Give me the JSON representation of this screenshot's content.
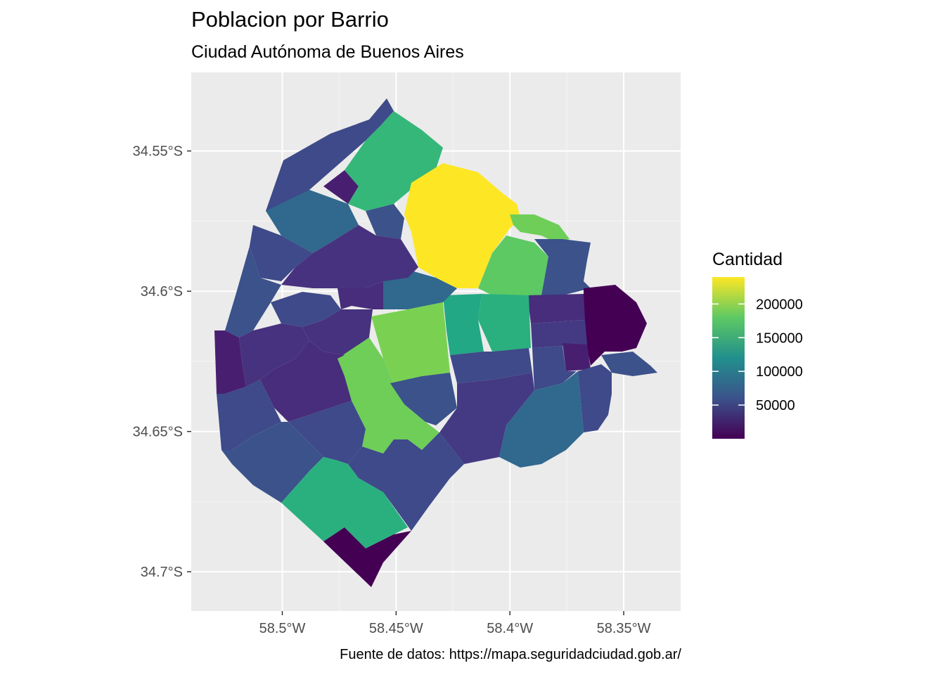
{
  "title": "Poblacion por Barrio",
  "subtitle": "Ciudad Autónoma de Buenos Aires",
  "caption": "Fuente de datos: https://mapa.seguridadciudad.gob.ar/",
  "chart_data": {
    "type": "choropleth",
    "panel_background": "#ebebeb",
    "grid": true,
    "x_axis": {
      "ticks": [
        {
          "value": -58.5,
          "label": "58.5°W"
        },
        {
          "value": -58.45,
          "label": "58.45°W"
        },
        {
          "value": -58.4,
          "label": "58.4°W"
        },
        {
          "value": -58.35,
          "label": "58.35°W"
        }
      ],
      "range": [
        -58.54,
        -58.325
      ]
    },
    "y_axis": {
      "ticks": [
        {
          "value": -34.55,
          "label": "34.55°S"
        },
        {
          "value": -34.6,
          "label": "34.6°S"
        },
        {
          "value": -34.65,
          "label": "34.65°S"
        },
        {
          "value": -34.7,
          "label": "34.7°S"
        }
      ],
      "range": [
        -34.714,
        -34.522
      ]
    },
    "legend": {
      "title": "Cantidad",
      "placement": "right",
      "colormap": "viridis",
      "range": [
        0,
        240000
      ],
      "breaks": [
        {
          "value": 200000,
          "label": "200000"
        },
        {
          "value": 150000,
          "label": "150000"
        },
        {
          "value": 100000,
          "label": "100000"
        },
        {
          "value": 50000,
          "label": "50000"
        }
      ]
    }
  }
}
